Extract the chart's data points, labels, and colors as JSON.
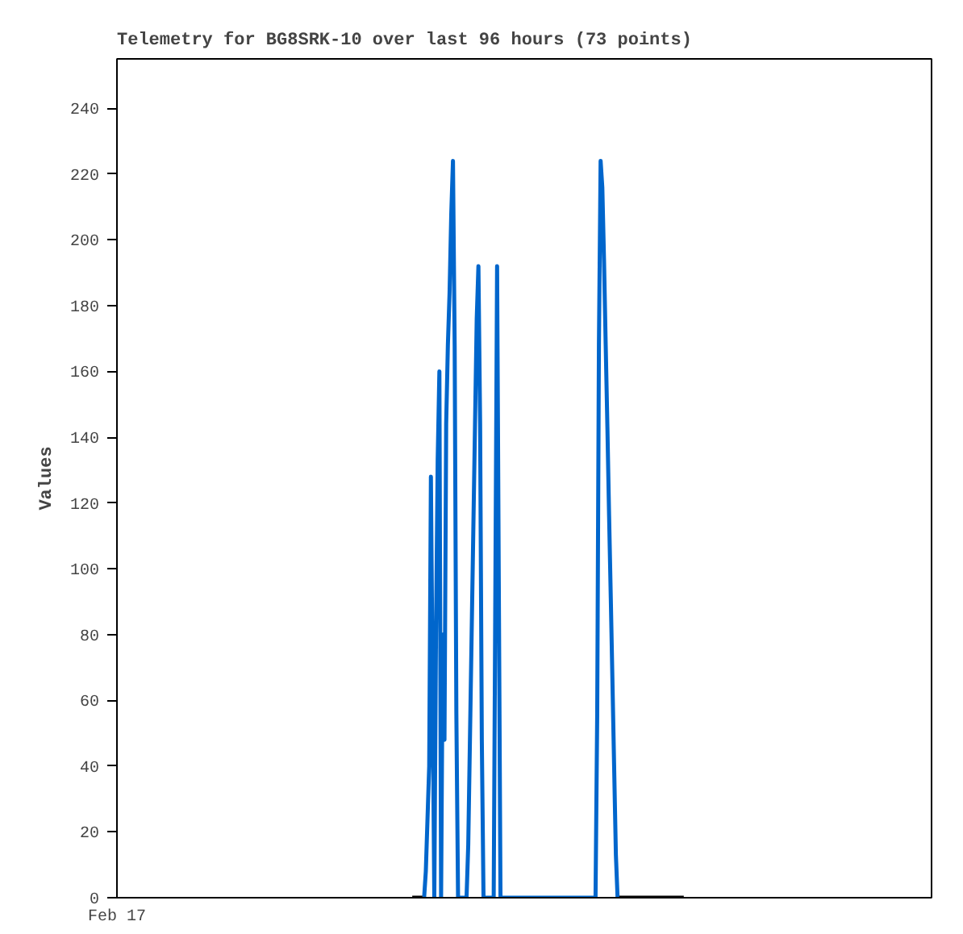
{
  "chart_data": {
    "type": "line",
    "title": "Telemetry for BG8SRK-10 over last 96 hours (73 points)",
    "ylabel": "Values",
    "categories": [
      null,
      null,
      null,
      null,
      null,
      null,
      null,
      null,
      null,
      null,
      null,
      null,
      null,
      null,
      null,
      null,
      null,
      null,
      null,
      null,
      null,
      null,
      null,
      null,
      null,
      null,
      null,
      null,
      null,
      null,
      null,
      null,
      null,
      null,
      null,
      null,
      null,
      null,
      null,
      null,
      null,
      null,
      null,
      null,
      null,
      null,
      null,
      null,
      null,
      null,
      null,
      null,
      null,
      null,
      null,
      null,
      null,
      null,
      null,
      null,
      null,
      null,
      null,
      null,
      null,
      null,
      null,
      null,
      null,
      null,
      null,
      null,
      null,
      null,
      null,
      null,
      null,
      null,
      null,
      null,
      null,
      null,
      null,
      null,
      null,
      null,
      null,
      null,
      null,
      null,
      null,
      null,
      null,
      null,
      null,
      null,
      null,
      null,
      null,
      null,
      null,
      null,
      null,
      null,
      null,
      null,
      null,
      null,
      null,
      null,
      null,
      null,
      null,
      null,
      null,
      null,
      null,
      null,
      null,
      null,
      null,
      null,
      null,
      null,
      null,
      null,
      null,
      null,
      null,
      null,
      null,
      null,
      null,
      null,
      null,
      null,
      null,
      null,
      null,
      null,
      null,
      null,
      null,
      null,
      null,
      null,
      null,
      null,
      null,
      null,
      null,
      null,
      null,
      null,
      null,
      null,
      null,
      null,
      null,
      null,
      null,
      null,
      null,
      null,
      null,
      null,
      null,
      null,
      null,
      null,
      null,
      null,
      null,
      null,
      null,
      null,
      null,
      null,
      null,
      null,
      null,
      null,
      null,
      null,
      null,
      null,
      null,
      null,
      null,
      null,
      null,
      null,
      null,
      null,
      null,
      null,
      null,
      null,
      null,
      null,
      null,
      null,
      null,
      null,
      null,
      null,
      null,
      null,
      null,
      null,
      null,
      null,
      null,
      null,
      null,
      null,
      null,
      null,
      null,
      null,
      null,
      null,
      null,
      null,
      null,
      null,
      null,
      null,
      null,
      null,
      null,
      null,
      null,
      null,
      null,
      null,
      null,
      null,
      null,
      null,
      null,
      null,
      null,
      null,
      null,
      null,
      null,
      null,
      null,
      null,
      null,
      null,
      null,
      null,
      null,
      null,
      null,
      null,
      null,
      null,
      null,
      null,
      null,
      null,
      null,
      null,
      null,
      null,
      null,
      null,
      null,
      null,
      null,
      null,
      null,
      null,
      null,
      null,
      null,
      null,
      null,
      null,
      null,
      null,
      null,
      null,
      null,
      null,
      null,
      null,
      null,
      null,
      null,
      null,
      null,
      null,
      null,
      null,
      null,
      null,
      null,
      null,
      null,
      null,
      null,
      null,
      null,
      null,
      null,
      null,
      null,
      null,
      null,
      null,
      null,
      null,
      null,
      null,
      null,
      null,
      null,
      null,
      null,
      null,
      null,
      null,
      null,
      null,
      null,
      null,
      null,
      null,
      null,
      null,
      null,
      null,
      null,
      null,
      null,
      null,
      null,
      null,
      null,
      null,
      null,
      null,
      null,
      null,
      null,
      null,
      null,
      null,
      null,
      null,
      null,
      null,
      null,
      null,
      null,
      null,
      null,
      null,
      null,
      null,
      null,
      null,
      null,
      null,
      null,
      null,
      null,
      null,
      null,
      null,
      null,
      null,
      null,
      null,
      null,
      null,
      null,
      null,
      null,
      null,
      null,
      null,
      null,
      null,
      null,
      null,
      null,
      null,
      null,
      null,
      null,
      null,
      null,
      null,
      null,
      null,
      null,
      null,
      null,
      null,
      null,
      null,
      null,
      null,
      null,
      null,
      null,
      null,
      null,
      null,
      null,
      null,
      null,
      null,
      null,
      null,
      null,
      null,
      null,
      null,
      null,
      null,
      null,
      null,
      null,
      null,
      null,
      null,
      null,
      null,
      null,
      null,
      null,
      null,
      null,
      null,
      null,
      null,
      null,
      null,
      null,
      null,
      null,
      null,
      null,
      null,
      null,
      null,
      null,
      null,
      null,
      null,
      null,
      null,
      null,
      null,
      null,
      null,
      null,
      null,
      null,
      null,
      null,
      null,
      null,
      null,
      null,
      null,
      null,
      null,
      null,
      null,
      null,
      null,
      null,
      null,
      null
    ],
    "ylim": [
      0,
      255
    ],
    "yticks": [
      0,
      20,
      40,
      60,
      80,
      100,
      120,
      140,
      160,
      180,
      200,
      220,
      240
    ],
    "tick_labels": "y",
    "annotations": [
      "Feb 17"
    ],
    "grid": false,
    "marker": "none",
    "line_style": "solid",
    "series": [
      {
        "color": "#0066cc",
        "values": [
          null,
          null,
          null,
          null,
          null,
          null,
          null,
          null,
          null,
          null,
          null,
          null,
          null,
          null,
          null,
          null,
          null,
          null,
          null,
          null,
          null,
          null,
          null,
          null,
          null,
          null,
          null,
          null,
          null,
          null,
          null,
          null,
          null,
          null,
          null,
          null,
          null,
          null,
          null,
          null,
          null,
          null,
          null,
          null,
          null,
          null,
          null,
          null,
          null,
          null,
          null,
          null,
          null,
          null,
          null,
          null,
          null,
          null,
          null,
          null,
          null,
          null,
          null,
          null,
          null,
          null,
          null,
          null,
          null,
          null,
          null,
          null,
          null,
          null,
          null,
          null,
          null,
          null,
          null,
          null,
          null,
          null,
          null,
          null,
          null,
          null,
          null,
          null,
          null,
          null,
          null,
          null,
          null,
          null,
          null,
          null,
          null,
          null,
          null,
          null,
          null,
          null,
          null,
          null,
          null,
          null,
          null,
          null,
          null,
          null,
          null,
          null,
          null,
          null,
          null,
          null,
          null,
          null,
          null,
          null,
          null,
          null,
          null,
          null,
          null,
          null,
          null,
          null,
          null,
          null,
          null,
          null,
          null,
          null,
          null,
          null,
          null,
          null,
          null,
          null,
          null,
          null,
          null,
          null,
          null,
          null,
          null,
          null,
          null,
          null,
          null,
          null,
          null,
          null,
          null,
          null,
          null,
          null,
          null,
          null,
          null,
          null,
          null,
          null,
          null,
          null,
          null,
          null,
          null,
          null,
          null,
          null,
          null,
          null,
          null,
          null,
          null,
          null,
          null,
          null,
          null,
          0,
          8,
          24,
          40,
          128,
          64,
          0,
          80,
          133,
          160,
          0,
          80,
          48,
          144,
          168,
          184,
          208,
          224,
          168,
          56,
          0,
          0,
          0,
          0,
          0,
          0,
          16,
          48,
          80,
          112,
          144,
          176,
          192,
          144,
          48,
          0,
          0,
          0,
          0,
          0,
          0,
          0,
          96,
          192,
          96,
          0,
          0,
          0,
          0,
          0,
          0,
          0,
          0,
          0,
          0,
          0,
          0,
          0,
          0,
          0,
          0,
          0,
          0,
          0,
          0,
          0,
          0,
          0,
          0,
          0,
          0,
          0,
          0,
          0,
          0,
          0,
          0,
          0,
          0,
          0,
          0,
          0,
          0,
          0,
          0,
          0,
          0,
          0,
          0,
          0,
          0,
          0,
          0,
          0,
          0,
          0,
          0,
          0,
          0,
          0,
          0,
          0,
          56,
          168,
          224,
          216,
          194,
          168,
          143,
          116,
          91,
          65,
          39,
          13,
          0,
          null,
          null,
          null,
          null,
          null,
          null,
          null,
          null,
          null,
          null,
          null,
          null,
          null,
          null,
          null,
          null,
          null,
          null,
          null,
          null,
          null,
          null,
          null,
          null,
          null,
          null,
          null,
          null,
          null,
          null,
          null,
          null,
          null,
          null,
          null,
          null,
          null,
          null,
          null,
          null,
          null,
          null,
          null,
          null,
          null,
          null,
          null,
          null,
          null,
          null,
          null,
          null,
          null,
          null,
          null,
          null,
          null,
          null,
          null,
          null,
          null,
          null,
          null,
          null,
          null,
          null,
          null,
          null,
          null,
          null,
          null,
          null,
          null,
          null,
          null,
          null,
          null,
          null,
          null,
          null,
          null,
          null,
          null,
          null,
          null,
          null,
          null,
          null,
          null,
          null,
          null,
          null,
          null,
          null,
          null,
          null,
          null,
          null,
          null,
          null,
          null,
          null,
          null,
          null,
          null,
          null,
          null,
          null,
          null,
          null,
          null,
          null,
          null,
          null,
          null,
          null,
          null,
          null,
          null,
          null,
          null,
          null,
          null,
          null,
          null,
          null,
          null,
          null,
          null,
          null,
          null,
          null,
          null,
          null,
          null,
          null,
          null,
          null,
          null,
          null,
          null,
          null,
          null,
          null,
          null,
          null,
          null,
          null,
          null,
          null,
          null,
          null,
          null,
          null,
          null,
          null,
          null,
          null,
          null,
          null,
          null,
          null,
          null,
          null,
          null,
          null,
          null,
          null,
          null,
          null,
          null,
          null,
          null,
          null,
          null,
          null,
          null,
          null,
          null,
          null,
          null,
          null,
          null,
          null,
          null
        ]
      },
      {
        "color": "#000000",
        "values": [
          null,
          null,
          null,
          null,
          null,
          null,
          null,
          null,
          null,
          null,
          null,
          null,
          null,
          null,
          null,
          null,
          null,
          null,
          null,
          null,
          null,
          null,
          null,
          null,
          null,
          null,
          null,
          null,
          null,
          null,
          null,
          null,
          null,
          null,
          null,
          null,
          null,
          null,
          null,
          null,
          null,
          null,
          null,
          null,
          null,
          null,
          null,
          null,
          null,
          null,
          null,
          null,
          null,
          null,
          null,
          null,
          null,
          null,
          null,
          null,
          null,
          null,
          null,
          null,
          null,
          null,
          null,
          null,
          null,
          null,
          null,
          null,
          null,
          null,
          null,
          null,
          null,
          null,
          null,
          null,
          null,
          null,
          null,
          null,
          null,
          null,
          null,
          null,
          null,
          null,
          null,
          null,
          null,
          null,
          null,
          null,
          null,
          null,
          null,
          null,
          null,
          null,
          null,
          null,
          null,
          null,
          null,
          null,
          null,
          null,
          null,
          null,
          null,
          null,
          null,
          null,
          null,
          null,
          null,
          null,
          null,
          null,
          null,
          null,
          null,
          null,
          null,
          null,
          null,
          null,
          null,
          null,
          null,
          null,
          null,
          null,
          null,
          null,
          null,
          null,
          null,
          null,
          null,
          null,
          null,
          null,
          null,
          null,
          null,
          null,
          null,
          null,
          null,
          null,
          null,
          null,
          null,
          null,
          null,
          null,
          null,
          null,
          null,
          null,
          null,
          null,
          null,
          null,
          null,
          null,
          null,
          null,
          null,
          null,
          0,
          0,
          0,
          0,
          0,
          0,
          0,
          null,
          null,
          null,
          null,
          null,
          null,
          null,
          null,
          null,
          null,
          null,
          null,
          null,
          null,
          null,
          null,
          null,
          null,
          null,
          null,
          null,
          null,
          null,
          null,
          null,
          null,
          null,
          null,
          null,
          null,
          null,
          null,
          null,
          null,
          null,
          null,
          null,
          null,
          null,
          null,
          null,
          null,
          null,
          null,
          null,
          null,
          null,
          null,
          null,
          null,
          null,
          null,
          null,
          null,
          null,
          null,
          null,
          null,
          null,
          null,
          null,
          null,
          null,
          null,
          null,
          null,
          null,
          null,
          null,
          null,
          null,
          null,
          null,
          null,
          null,
          null,
          null,
          null,
          null,
          null,
          null,
          null,
          null,
          null,
          null,
          null,
          null,
          null,
          null,
          null,
          null,
          null,
          null,
          null,
          null,
          null,
          null,
          null,
          null,
          null,
          null,
          null,
          null,
          null,
          null,
          null,
          null,
          null,
          null,
          null,
          null,
          null,
          null,
          null,
          null,
          0,
          0,
          0,
          0,
          0,
          0,
          0,
          0,
          0,
          0,
          0,
          0,
          0,
          0,
          0,
          0,
          0,
          0,
          0,
          0,
          0,
          0,
          0,
          0,
          0,
          0,
          0,
          0,
          0,
          0,
          0,
          0,
          0,
          0,
          0,
          0,
          0,
          0,
          0,
          null,
          null,
          null,
          null,
          null,
          null,
          null,
          null,
          null,
          null,
          null,
          null,
          null,
          null,
          null,
          null,
          null,
          null,
          null,
          null,
          null,
          null,
          null,
          null,
          null,
          null,
          null,
          null,
          null,
          null,
          null,
          null,
          null,
          null,
          null,
          null,
          null,
          null,
          null,
          null,
          null,
          null,
          null,
          null,
          null,
          null,
          null,
          null,
          null,
          null,
          null,
          null,
          null,
          null,
          null,
          null,
          null,
          null,
          null,
          null,
          null,
          null,
          null,
          null,
          null,
          null,
          null,
          null,
          null,
          null,
          null,
          null,
          null,
          null,
          null,
          null,
          null,
          null,
          null,
          null,
          null,
          null,
          null,
          null,
          null,
          null,
          null,
          null,
          null,
          null,
          null,
          null,
          null,
          null,
          null,
          null,
          null,
          null,
          null,
          null,
          null,
          null,
          null,
          null,
          null,
          null,
          null,
          null,
          null,
          null,
          null,
          null,
          null,
          null,
          null,
          null,
          null,
          null,
          null,
          null,
          null,
          null,
          null,
          null,
          null,
          null,
          null,
          null,
          null,
          null,
          null,
          null,
          null,
          null,
          null,
          null,
          null,
          null,
          null,
          null,
          null,
          null,
          null,
          null,
          null,
          null
        ]
      }
    ]
  }
}
